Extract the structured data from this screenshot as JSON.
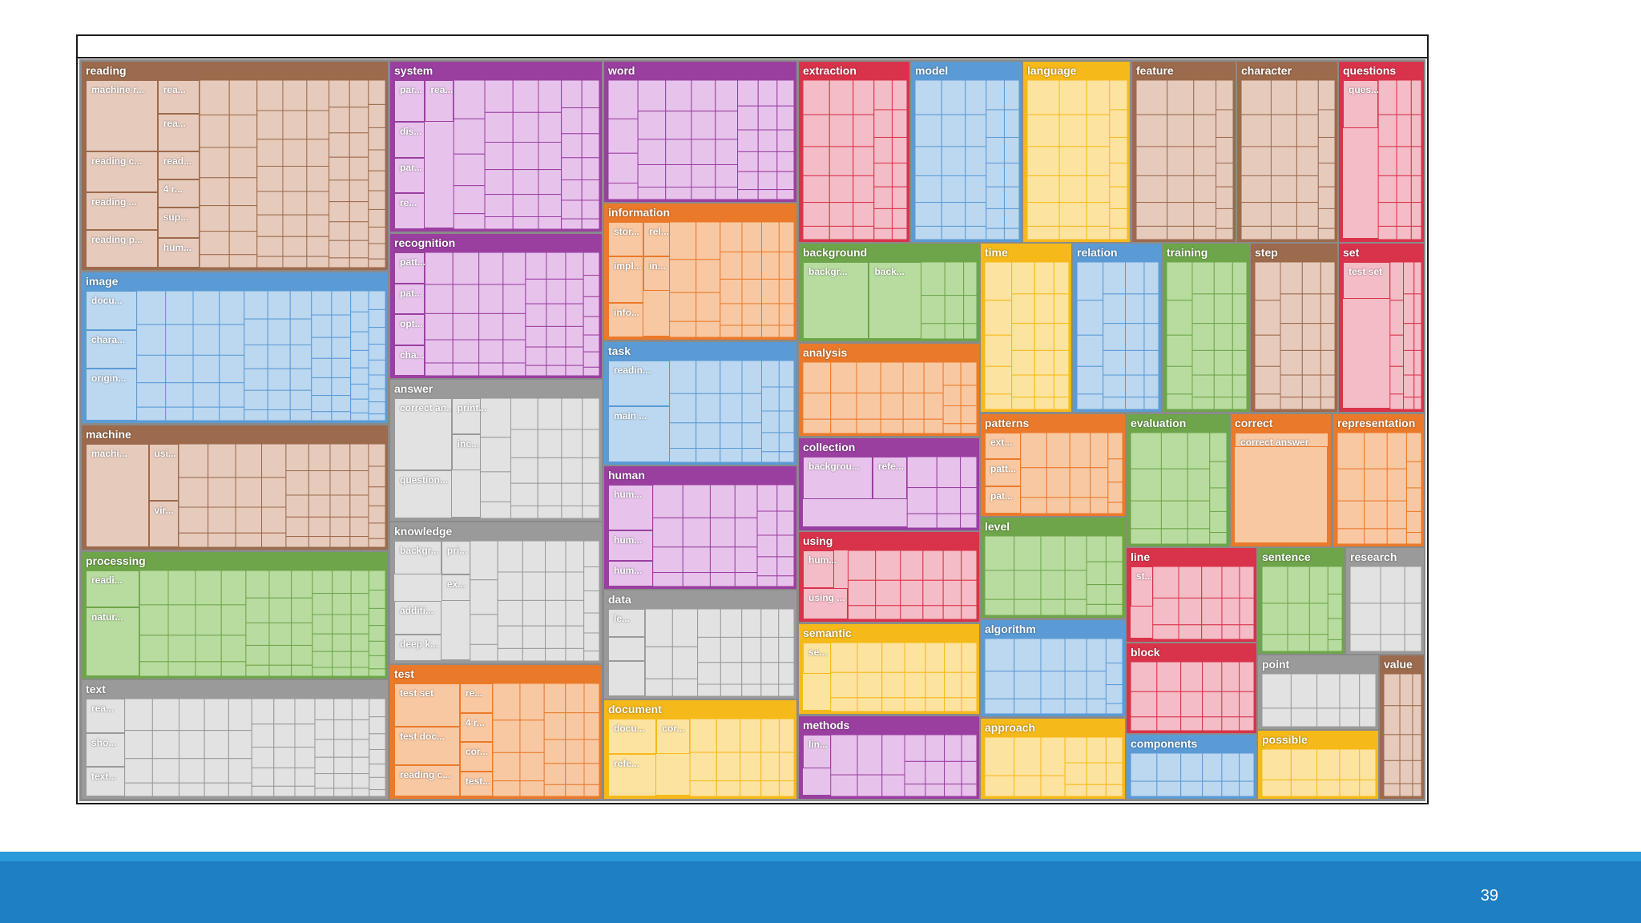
{
  "slide": {
    "page_number": "39"
  },
  "chart_data": {
    "type": "treemap",
    "title": "",
    "palette": {
      "brown": [
        "#9c6a4c",
        "#e6cbbd"
      ],
      "blue": [
        "#5b9bd5",
        "#bcd7f0"
      ],
      "green": [
        "#6ea54a",
        "#b8dca0"
      ],
      "gray": [
        "#9a9a9a",
        "#e2e2e2"
      ],
      "purple": [
        "#9a3fa0",
        "#e7c3ec"
      ],
      "orange": [
        "#ea7a2a",
        "#f8c8a3"
      ],
      "red": [
        "#d8334a",
        "#f4bcc6"
      ],
      "yellow": [
        "#f6b91a",
        "#fde3a0"
      ]
    },
    "categories": [
      {
        "name": "reading",
        "color": "brown",
        "labels": [
          "machine r...",
          "rea...",
          "rea...",
          "read...",
          "reading c...",
          "4 r...",
          "reading ...",
          "sup...",
          "reading p...",
          "hum..."
        ]
      },
      {
        "name": "image",
        "color": "blue",
        "labels": [
          "docu...",
          "chara...",
          "origin..."
        ]
      },
      {
        "name": "machine",
        "color": "brown",
        "labels": [
          "machi...",
          "usi...",
          "vir..."
        ]
      },
      {
        "name": "processing",
        "color": "green",
        "labels": [
          "readi...",
          "natur..."
        ]
      },
      {
        "name": "text",
        "color": "gray",
        "labels": [
          "rea...",
          "sho...",
          "text..."
        ]
      },
      {
        "name": "system",
        "color": "purple",
        "labels": [
          "par...",
          "rea...",
          "dis...",
          "par...",
          "re..."
        ]
      },
      {
        "name": "recognition",
        "color": "purple",
        "labels": [
          "patt...",
          "pat...",
          "opt...",
          "cha..."
        ]
      },
      {
        "name": "answer",
        "color": "gray",
        "labels": [
          "correct an...",
          "print...",
          "inc...",
          "question..."
        ]
      },
      {
        "name": "knowledge",
        "color": "gray",
        "labels": [
          "backgr...",
          "pri...",
          "ex...",
          "additi...",
          "deep k..."
        ]
      },
      {
        "name": "test",
        "color": "orange",
        "labels": [
          "test set",
          "re...",
          "4 r...",
          "test doc...",
          "cor...",
          "reading c...",
          "test..."
        ]
      },
      {
        "name": "word",
        "color": "purple",
        "labels": []
      },
      {
        "name": "information",
        "color": "orange",
        "labels": [
          "stor...",
          "rel...",
          "in...",
          "impl...",
          "info..."
        ]
      },
      {
        "name": "task",
        "color": "blue",
        "labels": [
          "readin...",
          "main ..."
        ]
      },
      {
        "name": "human",
        "color": "purple",
        "labels": [
          "hum...",
          "hum...",
          "hum..."
        ]
      },
      {
        "name": "data",
        "color": "gray",
        "labels": [
          "le..."
        ]
      },
      {
        "name": "document",
        "color": "yellow",
        "labels": [
          "docu...",
          "cor...",
          "refe..."
        ]
      },
      {
        "name": "extraction",
        "color": "red",
        "labels": []
      },
      {
        "name": "model",
        "color": "blue",
        "labels": []
      },
      {
        "name": "language",
        "color": "yellow",
        "labels": []
      },
      {
        "name": "feature",
        "color": "brown",
        "labels": []
      },
      {
        "name": "character",
        "color": "brown",
        "labels": []
      },
      {
        "name": "questions",
        "color": "red",
        "labels": [
          "ques..."
        ]
      },
      {
        "name": "background",
        "color": "green",
        "labels": [
          "backgr...",
          "back..."
        ]
      },
      {
        "name": "analysis",
        "color": "orange",
        "labels": []
      },
      {
        "name": "collection",
        "color": "purple",
        "labels": [
          "backgrou...",
          "refe..."
        ]
      },
      {
        "name": "using",
        "color": "red",
        "labels": [
          "hum...",
          "using ..."
        ]
      },
      {
        "name": "semantic",
        "color": "yellow",
        "labels": [
          "se..."
        ]
      },
      {
        "name": "methods",
        "color": "purple",
        "labels": [
          "lin..."
        ]
      },
      {
        "name": "time",
        "color": "yellow",
        "labels": []
      },
      {
        "name": "relation",
        "color": "blue",
        "labels": []
      },
      {
        "name": "training",
        "color": "green",
        "labels": []
      },
      {
        "name": "step",
        "color": "brown",
        "labels": []
      },
      {
        "name": "set",
        "color": "red",
        "labels": [
          "test set"
        ]
      },
      {
        "name": "patterns",
        "color": "orange",
        "labels": [
          "ext...",
          "patt...",
          "pat..."
        ]
      },
      {
        "name": "level",
        "color": "green",
        "labels": []
      },
      {
        "name": "algorithm",
        "color": "blue",
        "labels": []
      },
      {
        "name": "approach",
        "color": "yellow",
        "labels": []
      },
      {
        "name": "evaluation",
        "color": "green",
        "labels": []
      },
      {
        "name": "correct",
        "color": "orange",
        "labels": [
          "correct answer"
        ]
      },
      {
        "name": "representation",
        "color": "orange",
        "labels": []
      },
      {
        "name": "line",
        "color": "red",
        "labels": [
          "st..."
        ]
      },
      {
        "name": "sentence",
        "color": "green",
        "labels": []
      },
      {
        "name": "research",
        "color": "gray",
        "labels": []
      },
      {
        "name": "block",
        "color": "red",
        "labels": []
      },
      {
        "name": "point",
        "color": "gray",
        "labels": []
      },
      {
        "name": "value",
        "color": "brown",
        "labels": []
      },
      {
        "name": "components",
        "color": "blue",
        "labels": []
      },
      {
        "name": "possible",
        "color": "yellow",
        "labels": []
      }
    ]
  }
}
